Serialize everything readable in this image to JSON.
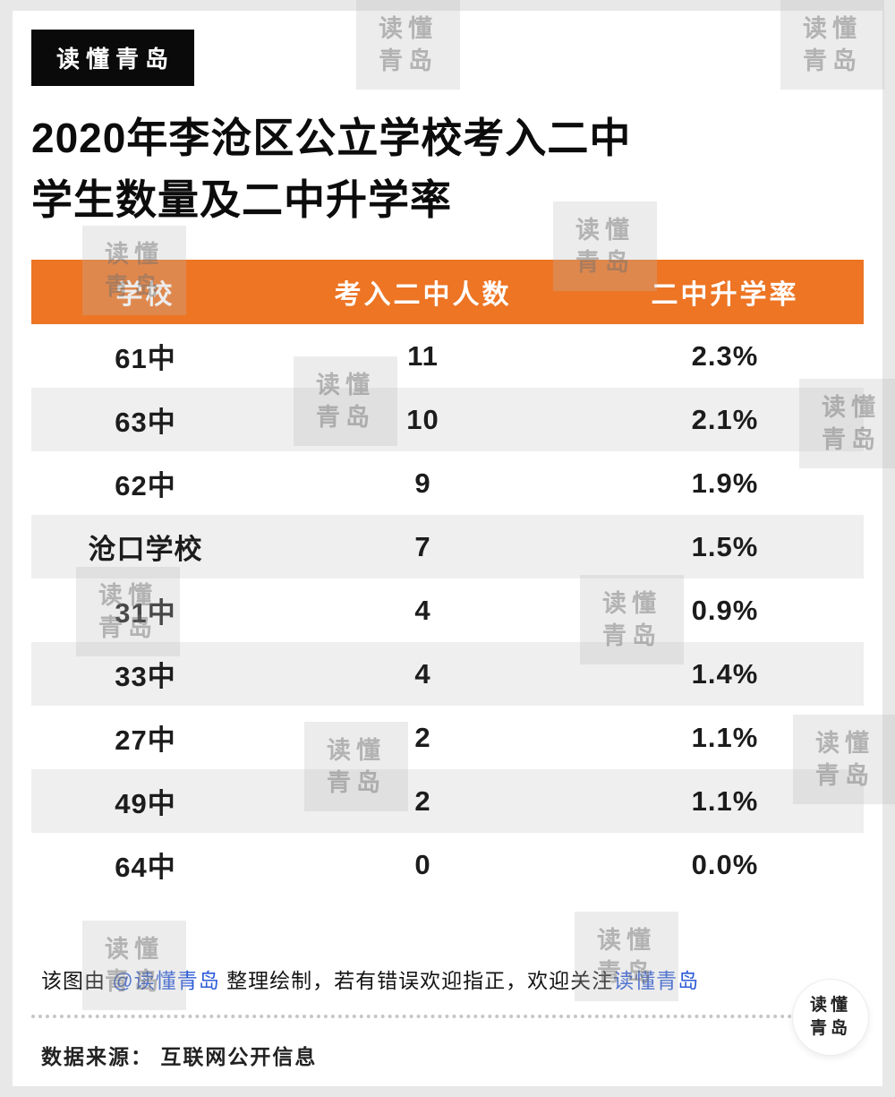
{
  "badge": {
    "label": "读懂青岛"
  },
  "title": {
    "line1": "2020年李沧区公立学校考入二中",
    "line2": "学生数量及二中升学率"
  },
  "chart_data": {
    "type": "table",
    "title": "2020年李沧区公立学校考入二中学生数量及二中升学率",
    "columns": [
      "学校",
      "考入二中人数",
      "二中升学率"
    ],
    "rows": [
      [
        "61中",
        "11",
        "2.3%"
      ],
      [
        "63中",
        "10",
        "2.1%"
      ],
      [
        "62中",
        "9",
        "1.9%"
      ],
      [
        "沧口学校",
        "7",
        "1.5%"
      ],
      [
        "31中",
        "4",
        "0.9%"
      ],
      [
        "33中",
        "4",
        "1.4%"
      ],
      [
        "27中",
        "2",
        "1.1%"
      ],
      [
        "49中",
        "2",
        "1.1%"
      ],
      [
        "64中",
        "0",
        "0.0%"
      ]
    ],
    "header_style": "orange",
    "row_alternating": true
  },
  "footer": {
    "credit_prefix": "该图由 ",
    "credit_handle": "@读懂青岛",
    "credit_middle": "  整理绘制，若有错误欢迎指正，欢迎关注",
    "credit_suffix": "读懂青岛",
    "source": "数据来源：  互联网公开信息"
  },
  "watermark": {
    "line1": "读懂",
    "line2": "青岛"
  },
  "logo_badge": {
    "line1": "读懂",
    "line2": "青岛"
  },
  "colors": {
    "accent_orange": "#ED7524",
    "link_blue": "#2C5BD9",
    "row_alt": "#EFEFEF",
    "badge_black": "#0A0A0A"
  }
}
